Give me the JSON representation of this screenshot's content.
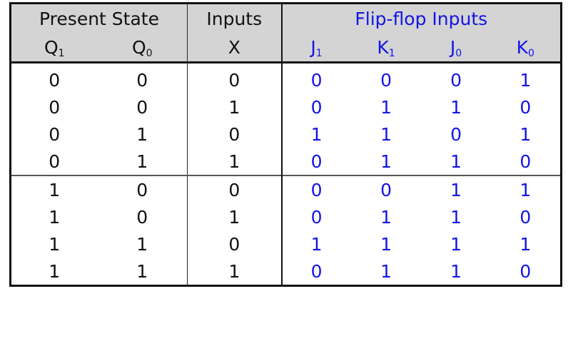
{
  "headers": {
    "present_state": "Present State",
    "inputs": "Inputs",
    "flipflop_inputs": "Flip-flop Inputs"
  },
  "subheaders": {
    "q1": {
      "base": "Q",
      "sub": "1"
    },
    "q0": {
      "base": "Q",
      "sub": "0"
    },
    "x": "X",
    "j1": {
      "base": "J",
      "sub": "1"
    },
    "k1": {
      "base": "K",
      "sub": "1"
    },
    "j0": {
      "base": "J",
      "sub": "0"
    },
    "k0": {
      "base": "K",
      "sub": "0"
    }
  },
  "rows": [
    [
      "0",
      "0",
      "0",
      "0",
      "0",
      "0",
      "1"
    ],
    [
      "0",
      "0",
      "1",
      "0",
      "1",
      "1",
      "0"
    ],
    [
      "0",
      "1",
      "0",
      "1",
      "1",
      "0",
      "1"
    ],
    [
      "0",
      "1",
      "1",
      "0",
      "1",
      "1",
      "0"
    ],
    [
      "1",
      "0",
      "0",
      "0",
      "0",
      "1",
      "1"
    ],
    [
      "1",
      "0",
      "1",
      "0",
      "1",
      "1",
      "0"
    ],
    [
      "1",
      "1",
      "0",
      "1",
      "1",
      "1",
      "1"
    ],
    [
      "1",
      "1",
      "1",
      "0",
      "1",
      "1",
      "0"
    ]
  ],
  "colors": {
    "header_bg": "#d4d4d4",
    "flipflop_text": "#1414e6",
    "text": "#111111"
  }
}
